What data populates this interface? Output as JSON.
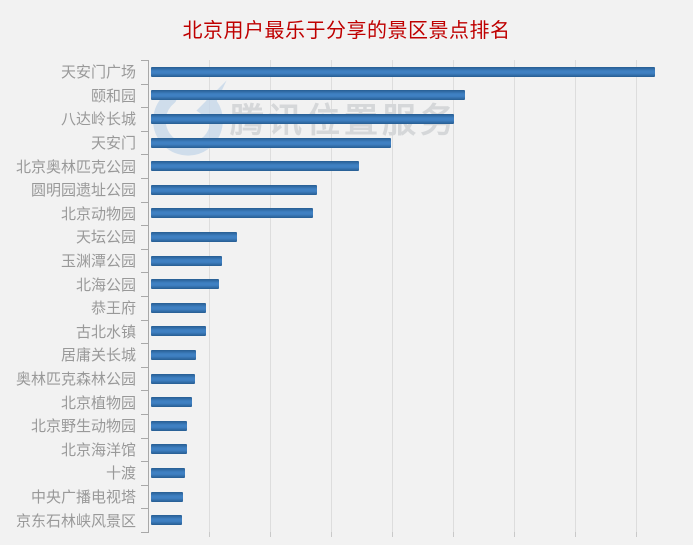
{
  "title": {
    "text": "北京用户最乐于分享的景区景点排名",
    "color": "#bf0000"
  },
  "watermark": {
    "text": "腾讯位置服务",
    "logo": "tencent-location-service-logo"
  },
  "chart_data": {
    "type": "bar",
    "orientation": "horizontal",
    "title": "北京用户最乐于分享的景区景点排名",
    "categories": [
      "天安门广场",
      "颐和园",
      "八达岭长城",
      "天安门",
      "北京奥林匹克公园",
      "圆明园遗址公园",
      "北京动物园",
      "天坛公园",
      "玉渊潭公园",
      "北海公园",
      "恭王府",
      "古北水镇",
      "居庸关长城",
      "奥林匹克森林公园",
      "北京植物园",
      "北京野生动物园",
      "北京海洋馆",
      "十渡",
      "中央广播电视塔",
      "京东石林峡风景区"
    ],
    "values": [
      100,
      62.4,
      60.2,
      47.6,
      41.2,
      32.9,
      32.2,
      17.0,
      14.0,
      13.4,
      11.0,
      10.9,
      9.0,
      8.7,
      8.1,
      7.2,
      7.2,
      6.8,
      6.4,
      6.2
    ],
    "value_axis": {
      "tick_labels_visible": false,
      "gridline_count": 8
    },
    "unit": "relative share index (longest bar = 100, axis unlabeled)",
    "legend": "none",
    "xlabel": "",
    "ylabel": "",
    "colors": {
      "bar": "#3f80c2",
      "bar_shade": "#275d92",
      "grid": "#dddddd",
      "axis": "#a8a8a8",
      "category_label": "#999999",
      "background": "#f2f2f2",
      "title": "#bf0000",
      "watermark": "#d5d7d9"
    }
  }
}
